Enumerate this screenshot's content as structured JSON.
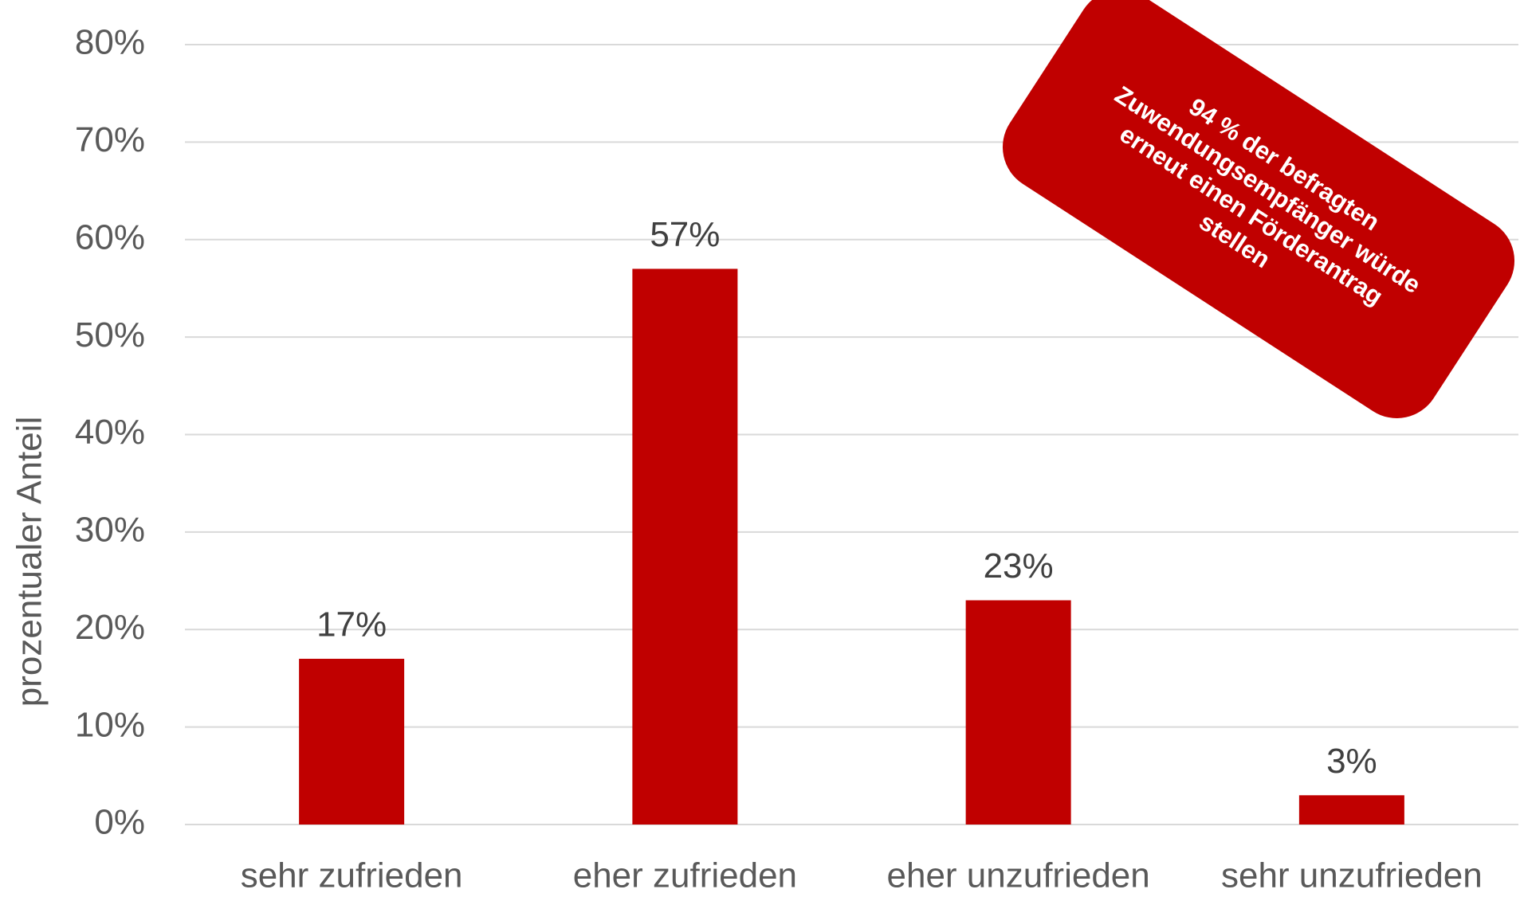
{
  "chart_data": {
    "type": "bar",
    "y_axis_label": "prozentualer Anteil",
    "categories": [
      "sehr zufrieden",
      "eher zufrieden",
      "eher unzufrieden",
      "sehr unzufrieden"
    ],
    "values": [
      17,
      57,
      23,
      3
    ],
    "value_labels": [
      "17%",
      "57%",
      "23%",
      "3%"
    ],
    "color": "#c00000",
    "ylim": [
      0,
      80
    ],
    "yticks": [
      {
        "value": 0,
        "label": "0%"
      },
      {
        "value": 10,
        "label": "10%"
      },
      {
        "value": 20,
        "label": "20%"
      },
      {
        "value": 30,
        "label": "30%"
      },
      {
        "value": 40,
        "label": "40%"
      },
      {
        "value": 50,
        "label": "50%"
      },
      {
        "value": 60,
        "label": "60%"
      },
      {
        "value": 70,
        "label": "70%"
      },
      {
        "value": 80,
        "label": "80%"
      }
    ],
    "grid": true,
    "annotation": [
      "94 % der befragten",
      "Zuwendungsempfänger würde",
      "erneut einen Förderantrag",
      "stellen"
    ]
  }
}
